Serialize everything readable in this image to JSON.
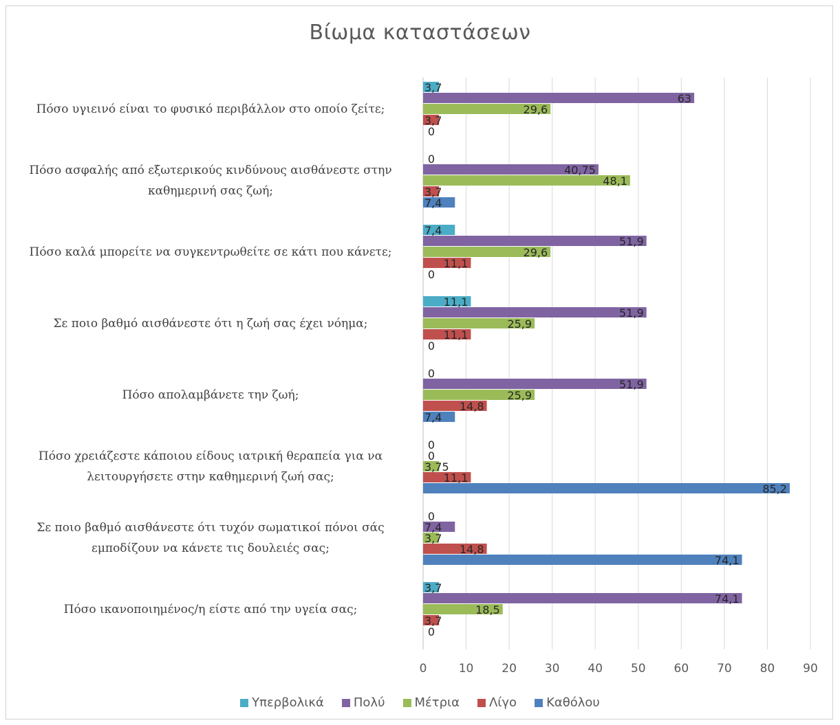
{
  "chart_data": {
    "type": "bar",
    "orientation": "horizontal",
    "title": "Βίωμα καταστάσεων",
    "categories": [
      "Πόσο υγιεινό είναι το φυσικό περιβάλλον στο οποίο ζείτε;",
      "Πόσο ασφαλής από εξωτερικούς κινδύνους αισθάνεστε στην καθημερινή σας ζωή;",
      "Πόσο καλά μπορείτε να συγκεντρωθείτε σε κάτι που κάνετε;",
      "Σε ποιο βαθμό αισθάνεστε ότι η ζωή σας έχει νόημα;",
      "Πόσο απολαμβάνετε την ζωή;",
      "Πόσο χρειάζεστε κάποιου είδους ιατρική θεραπεία για να λειτουργήσετε στην καθημερινή ζωή σας;",
      "Σε ποιο βαθμό αισθάνεστε ότι τυχόν σωματικοί πόνοι σάς εμποδίζουν να κάνετε τις δουλειές σας;",
      "Πόσο ικανοποιημένος/η είστε από την υγεία σας;"
    ],
    "series": [
      {
        "name": "Υπερβολικά",
        "color": "#4bacc6",
        "values": [
          3.7,
          0,
          7.4,
          11.1,
          0,
          0,
          0,
          3.7
        ],
        "labels": [
          "3,7",
          "0",
          "7,4",
          "11,1",
          "0",
          "0",
          "0",
          "3,7"
        ]
      },
      {
        "name": "Πολύ",
        "color": "#8064a2",
        "values": [
          63,
          40.75,
          51.9,
          51.9,
          51.9,
          0,
          7.4,
          74.1
        ],
        "labels": [
          "63",
          "40,75",
          "51,9",
          "51,9",
          "51,9",
          "0",
          "7,4",
          "74,1"
        ]
      },
      {
        "name": "Μέτρια",
        "color": "#9bbb59",
        "values": [
          29.6,
          48.1,
          29.6,
          25.9,
          25.9,
          3.75,
          3.7,
          18.5
        ],
        "labels": [
          "29,6",
          "48,1",
          "29,6",
          "25,9",
          "25,9",
          "3,75",
          "3,7",
          "18,5"
        ]
      },
      {
        "name": "Λίγο",
        "color": "#c0504d",
        "values": [
          3.7,
          3.7,
          11.1,
          11.1,
          14.8,
          11.1,
          14.8,
          3.7
        ],
        "labels": [
          "3,7",
          "3,7",
          "11,1",
          "11,1",
          "14,8",
          "11,1",
          "14,8",
          "3,7"
        ]
      },
      {
        "name": "Καθόλου",
        "color": "#4f81bd",
        "values": [
          0,
          7.4,
          0,
          0,
          7.4,
          85.2,
          74.1,
          0
        ],
        "labels": [
          "0",
          "7,4",
          "0",
          "0",
          "7,4",
          "85,2",
          "74,1",
          "0"
        ]
      }
    ],
    "xlim": [
      0,
      90
    ],
    "xticks": [
      0,
      10,
      20,
      30,
      40,
      50,
      60,
      70,
      80,
      90
    ],
    "grid": true,
    "legend": "bottom",
    "data_labels": true
  }
}
